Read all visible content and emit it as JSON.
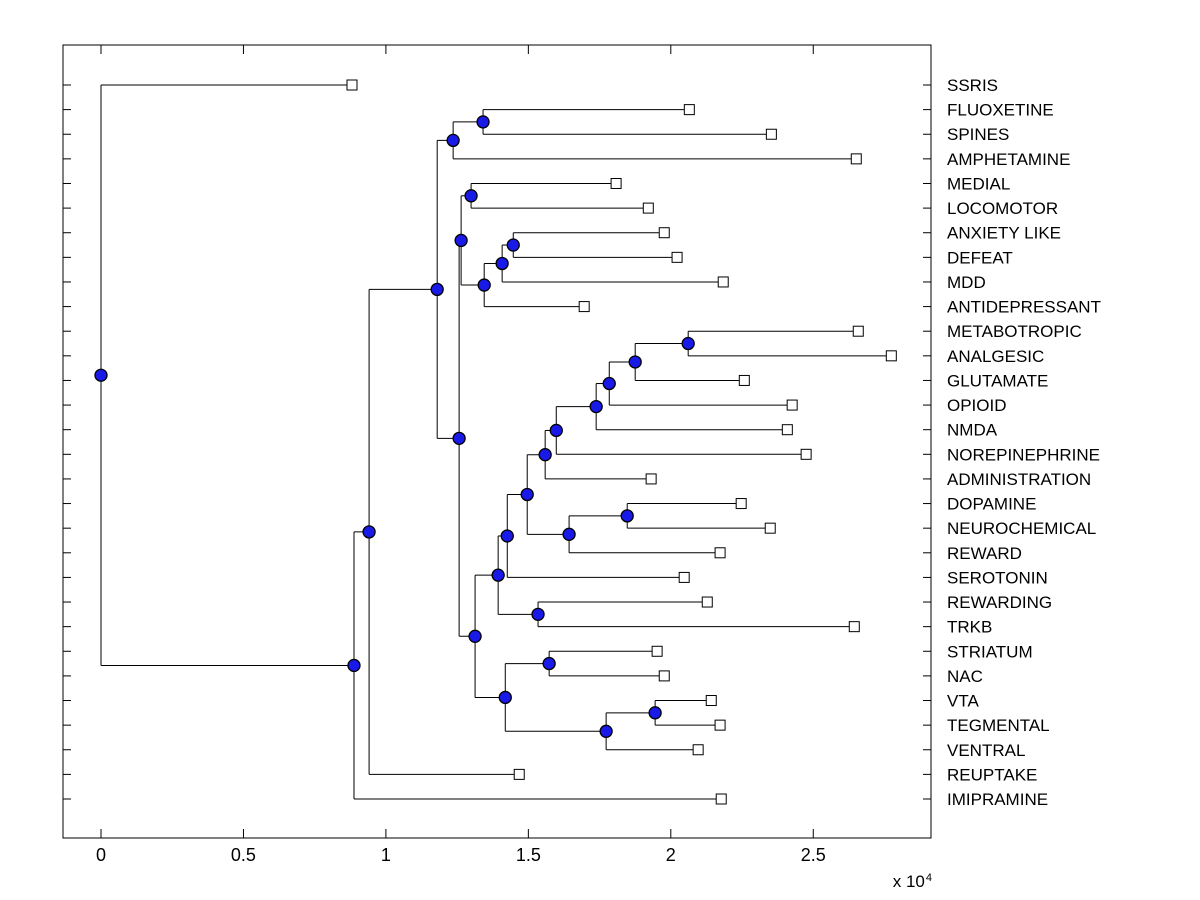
{
  "figure": {
    "background": "#ffffff"
  },
  "chart_data": {
    "type": "dendrogram",
    "subtype": "phylogenetic-tree-square-branches",
    "title": "",
    "orientation": "root-left-leaves-right",
    "x_axis": {
      "tick_labels": [
        "0",
        "0.5",
        "1",
        "1.5",
        "2",
        "2.5"
      ],
      "tick_values": [
        0,
        0.5,
        1,
        1.5,
        2,
        2.5
      ],
      "multiplier_label": "x 10",
      "multiplier_exponent": "4",
      "xlim": [
        -0.135,
        2.915
      ],
      "units": "distance x 10^4",
      "grid": false
    },
    "leaves": [
      {
        "name": "SSRIS",
        "dist": 0.881
      },
      {
        "name": "FLUOXETINE",
        "dist": 2.065
      },
      {
        "name": "SPINES",
        "dist": 2.353
      },
      {
        "name": "AMPHETAMINE",
        "dist": 2.651
      },
      {
        "name": "MEDIAL",
        "dist": 1.808
      },
      {
        "name": "LOCOMOTOR",
        "dist": 1.921
      },
      {
        "name": "ANXIETY LIKE",
        "dist": 1.977
      },
      {
        "name": "DEFEAT",
        "dist": 2.022
      },
      {
        "name": "MDD",
        "dist": 2.184
      },
      {
        "name": "ANTIDEPRESSANT",
        "dist": 1.696
      },
      {
        "name": "METABOTROPIC",
        "dist": 2.658
      },
      {
        "name": "ANALGESIC",
        "dist": 2.774
      },
      {
        "name": "GLUTAMATE",
        "dist": 2.258
      },
      {
        "name": "OPIOID",
        "dist": 2.426
      },
      {
        "name": "NMDA",
        "dist": 2.409
      },
      {
        "name": "NOREPINEPHRINE",
        "dist": 2.475
      },
      {
        "name": "ADMINISTRATION",
        "dist": 1.931
      },
      {
        "name": "DOPAMINE",
        "dist": 2.247
      },
      {
        "name": "NEUROCHEMICAL",
        "dist": 2.349
      },
      {
        "name": "REWARD",
        "dist": 2.173
      },
      {
        "name": "SEROTONIN",
        "dist": 2.047
      },
      {
        "name": "REWARDING",
        "dist": 2.128
      },
      {
        "name": "TRKB",
        "dist": 2.644
      },
      {
        "name": "STRIATUM",
        "dist": 1.952
      },
      {
        "name": "NAC",
        "dist": 1.977
      },
      {
        "name": "VTA",
        "dist": 2.142
      },
      {
        "name": "TEGMENTAL",
        "dist": 2.173
      },
      {
        "name": "VENTRAL",
        "dist": 2.096
      },
      {
        "name": "REUPTAKE",
        "dist": 1.468
      },
      {
        "name": "IMIPRAMINE",
        "dist": 2.177
      }
    ],
    "internal_nodes": [
      {
        "id": "nA",
        "children": [
          "FLUOXETINE",
          "SPINES"
        ],
        "dist": 1.341
      },
      {
        "id": "nB",
        "children": [
          "nA",
          "AMPHETAMINE"
        ],
        "dist": 1.236
      },
      {
        "id": "nD",
        "children": [
          "MEDIAL",
          "LOCOMOTOR"
        ],
        "dist": 1.299
      },
      {
        "id": "nF",
        "children": [
          "ANXIETY LIKE",
          "DEFEAT"
        ],
        "dist": 1.447
      },
      {
        "id": "nG",
        "children": [
          "nF",
          "MDD"
        ],
        "dist": 1.408
      },
      {
        "id": "nH",
        "children": [
          "nG",
          "ANTIDEPRESSANT"
        ],
        "dist": 1.345
      },
      {
        "id": "nE",
        "children": [
          "nD",
          "nH"
        ],
        "dist": 1.264
      },
      {
        "id": "nJ",
        "children": [
          "METABOTROPIC",
          "ANALGESIC"
        ],
        "dist": 2.061
      },
      {
        "id": "nK",
        "children": [
          "nJ",
          "GLUTAMATE"
        ],
        "dist": 1.875
      },
      {
        "id": "nL",
        "children": [
          "nK",
          "OPIOID"
        ],
        "dist": 1.784
      },
      {
        "id": "nM",
        "children": [
          "nL",
          "NMDA"
        ],
        "dist": 1.738
      },
      {
        "id": "nN",
        "children": [
          "nM",
          "NOREPINEPHRINE"
        ],
        "dist": 1.598
      },
      {
        "id": "nO",
        "children": [
          "nN",
          "ADMINISTRATION"
        ],
        "dist": 1.559
      },
      {
        "id": "nQ",
        "children": [
          "DOPAMINE",
          "NEUROCHEMICAL"
        ],
        "dist": 1.847
      },
      {
        "id": "nR",
        "children": [
          "nQ",
          "REWARD"
        ],
        "dist": 1.643
      },
      {
        "id": "nP",
        "children": [
          "nO",
          "nR"
        ],
        "dist": 1.496
      },
      {
        "id": "nS",
        "children": [
          "nP",
          "SEROTONIN"
        ],
        "dist": 1.426
      },
      {
        "id": "nU",
        "children": [
          "REWARDING",
          "TRKB"
        ],
        "dist": 1.534
      },
      {
        "id": "nT",
        "children": [
          "nS",
          "nU"
        ],
        "dist": 1.394
      },
      {
        "id": "nW",
        "children": [
          "STRIATUM",
          "NAC"
        ],
        "dist": 1.573
      },
      {
        "id": "nY",
        "children": [
          "VTA",
          "TEGMENTAL"
        ],
        "dist": 1.945
      },
      {
        "id": "nX",
        "children": [
          "nY",
          "VENTRAL"
        ],
        "dist": 1.773
      },
      {
        "id": "nV",
        "children": [
          "nW",
          "nX"
        ],
        "dist": 1.419
      },
      {
        "id": "nB2",
        "children": [
          "nT",
          "nV"
        ],
        "dist": 1.313
      },
      {
        "id": "nI",
        "children": [
          "nE",
          "nB2"
        ],
        "dist": 1.257
      },
      {
        "id": "nC",
        "children": [
          "nB",
          "nI"
        ],
        "dist": 1.18
      },
      {
        "id": "nAA",
        "children": [
          "nC",
          "REUPTAKE"
        ],
        "dist": 0.941
      },
      {
        "id": "nZ",
        "children": [
          "nAA",
          "IMIPRAMINE"
        ],
        "dist": 0.888
      },
      {
        "id": "root",
        "children": [
          "SSRIS",
          "nZ"
        ],
        "dist": 0.0
      }
    ],
    "root_id": "root",
    "styles": {
      "branch_color": "#000000",
      "leaf_marker": "open-square",
      "leaf_marker_fill": "#ffffff",
      "leaf_marker_edge": "#000000",
      "node_marker": "filled-circle",
      "node_marker_fill": "#1a1ae8",
      "node_marker_edge": "#000000",
      "axis_color": "#000000",
      "label_color": "#000000",
      "legend": "none"
    }
  }
}
